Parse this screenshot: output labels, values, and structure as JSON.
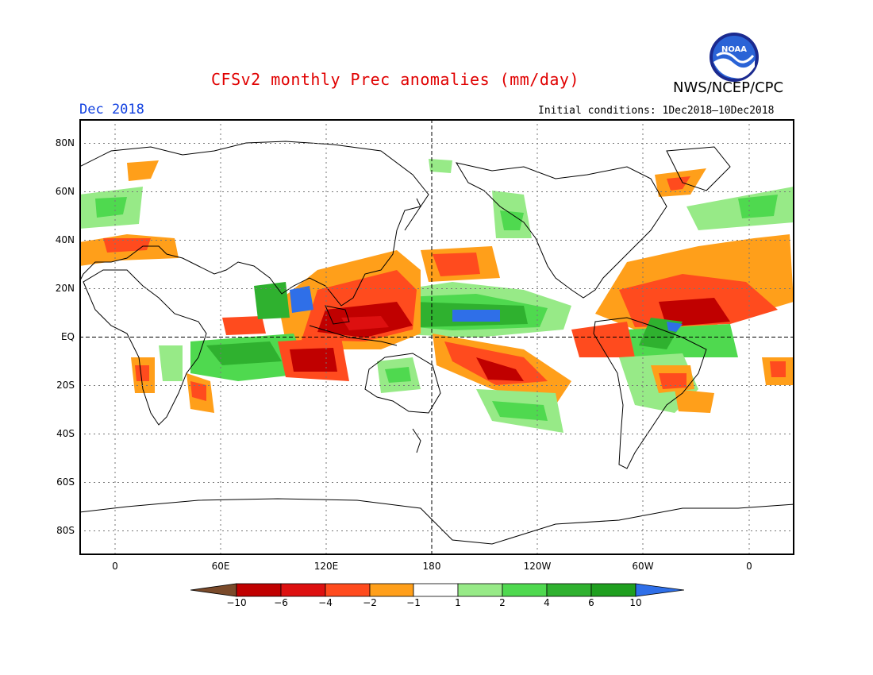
{
  "header": {
    "title": "CFSv2 monthly Prec anomalies (mm/day)",
    "agency": "NWS/NCEP/CPC",
    "month": "Dec 2018",
    "initial_conditions": "Initial conditions: 1Dec2018–10Dec2018",
    "logo_text": "NOAA"
  },
  "map": {
    "y_ticks": [
      "80N",
      "60N",
      "40N",
      "20N",
      "EQ",
      "20S",
      "40S",
      "60S",
      "80S"
    ],
    "x_ticks": [
      "0",
      "60E",
      "120E",
      "180",
      "120W",
      "60W",
      "0"
    ]
  },
  "colorbar": {
    "labels": [
      "−10",
      "−6",
      "−4",
      "−2",
      "−1",
      "1",
      "2",
      "4",
      "6",
      "10"
    ],
    "colors": [
      "#7a4a2a",
      "#c00000",
      "#dd1010",
      "#ff4b1e",
      "#ff9f1a",
      "#ffffff",
      "#97ea87",
      "#4fd94f",
      "#2fb12f",
      "#1f9f1f",
      "#2f6fe8"
    ]
  }
}
